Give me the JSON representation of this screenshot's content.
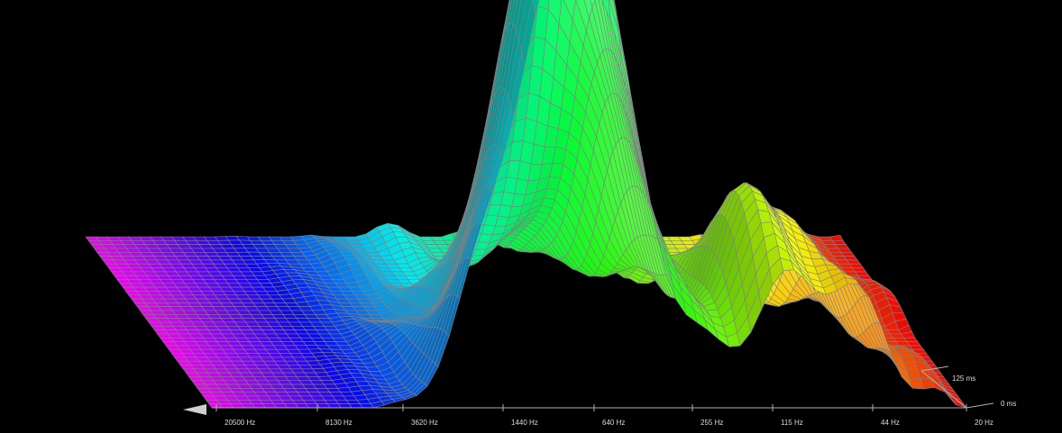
{
  "chart_data": {
    "type": "waterfall-3d",
    "x_axis": {
      "scale": "log-reversed",
      "tick_labels": [
        "20500 Hz",
        "8130 Hz",
        "3620 Hz",
        "1440 Hz",
        "640 Hz",
        "255 Hz",
        "115 Hz",
        "44 Hz",
        "20 Hz"
      ],
      "range_hz": [
        20500,
        20
      ]
    },
    "t_axis": {
      "tick_labels": [
        "0 ms",
        "125 ms"
      ],
      "range_ms": [
        0,
        125
      ]
    },
    "grid": false,
    "background": "#000000",
    "colors": {
      "wire": "#808080",
      "axis": "#b0b0b0",
      "text": "#dddddd",
      "hue_high_freq": "#e040e0",
      "hue_low_freq": "#ff2000"
    },
    "peaks": [
      {
        "freq_hz": 1440,
        "time_ms": 0,
        "level": 0.35
      },
      {
        "freq_hz": 900,
        "time_ms": 10,
        "level": 0.55
      },
      {
        "freq_hz": 640,
        "time_ms": 25,
        "level": 0.95
      },
      {
        "freq_hz": 400,
        "time_ms": 35,
        "level": 0.55
      },
      {
        "freq_hz": 115,
        "time_ms": 30,
        "level": 0.45
      },
      {
        "freq_hz": 60,
        "time_ms": 10,
        "level": 0.25
      }
    ]
  }
}
